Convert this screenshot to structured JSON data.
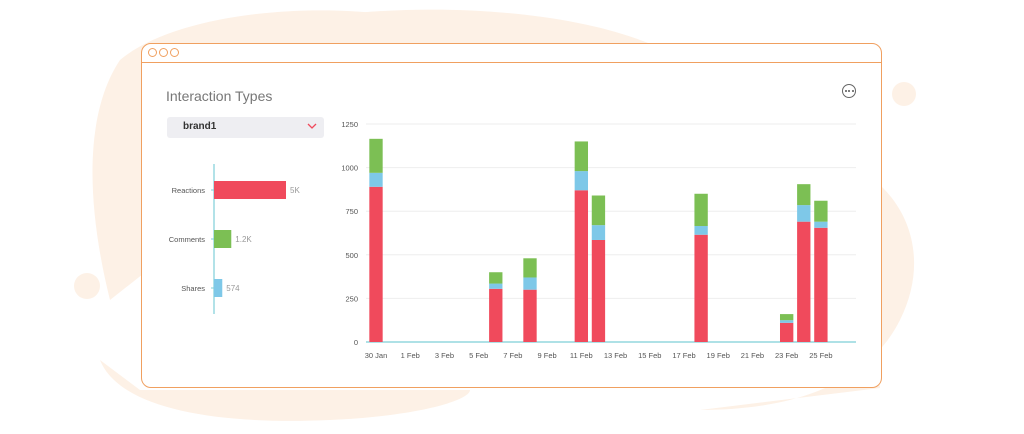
{
  "panel": {
    "title": "Interaction Types",
    "dropdown_value": "brand1"
  },
  "colors": {
    "reactions": "#f04a5c",
    "comments": "#7cbf54",
    "shares": "#7ec8e8",
    "frame": "#f0a060",
    "blob": "#fdf1e6"
  },
  "chart_data": [
    {
      "type": "bar",
      "orientation": "horizontal",
      "categories": [
        "Reactions",
        "Comments",
        "Shares"
      ],
      "values": [
        5000,
        1200,
        574
      ],
      "value_labels": [
        "5K",
        "1.2K",
        "574"
      ]
    },
    {
      "type": "bar",
      "stacked": true,
      "x_ticks": [
        "30 Jan",
        "1 Feb",
        "3 Feb",
        "5 Feb",
        "7 Feb",
        "9 Feb",
        "11 Feb",
        "13 Feb",
        "15 Feb",
        "17 Feb",
        "19 Feb",
        "21 Feb",
        "23 Feb",
        "25 Feb"
      ],
      "ylim": [
        0,
        1250
      ],
      "y_ticks": [
        0,
        250,
        500,
        750,
        1000,
        1250
      ],
      "grid": true,
      "categories": [
        "30 Jan",
        "6 Feb",
        "8 Feb",
        "11 Feb",
        "12 Feb",
        "18 Feb",
        "23 Feb",
        "24 Feb",
        "25 Feb"
      ],
      "series": [
        {
          "key": "reactions",
          "values": [
            890,
            305,
            300,
            870,
            585,
            615,
            110,
            690,
            655
          ]
        },
        {
          "key": "shares",
          "values": [
            80,
            30,
            70,
            110,
            85,
            50,
            15,
            95,
            35
          ]
        },
        {
          "key": "comments",
          "values": [
            195,
            65,
            110,
            170,
            170,
            185,
            35,
            120,
            120
          ]
        }
      ]
    }
  ]
}
